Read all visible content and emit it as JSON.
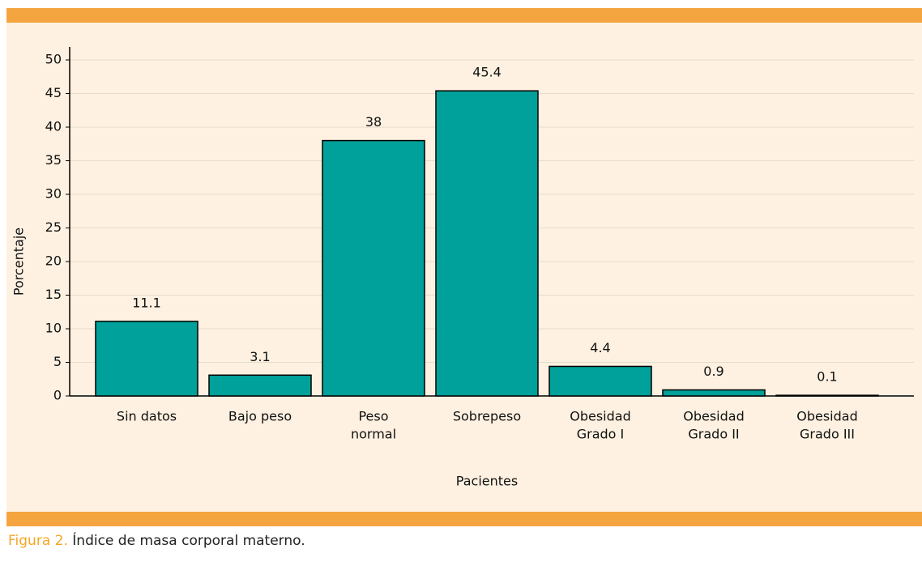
{
  "chart_data": {
    "type": "bar",
    "categories": [
      [
        "Sin datos"
      ],
      [
        "Bajo peso"
      ],
      [
        "Peso",
        "normal"
      ],
      [
        "Sobrepeso"
      ],
      [
        "Obesidad",
        "Grado I"
      ],
      [
        "Obesidad",
        "Grado II"
      ],
      [
        "Obesidad",
        "Grado III"
      ]
    ],
    "values": [
      11.1,
      3.1,
      38,
      45.4,
      4.4,
      0.9,
      0.1
    ],
    "color": "#00a19a",
    "ylabel": "Porcentaje",
    "xlabel": "Pacientes",
    "ylim": [
      0,
      50
    ],
    "yticks": [
      0,
      5,
      10,
      15,
      20,
      25,
      30,
      35,
      40,
      45,
      50
    ],
    "grid": true
  },
  "caption": {
    "label": "Figura 2.",
    "text": "Índice de masa corporal materno."
  }
}
